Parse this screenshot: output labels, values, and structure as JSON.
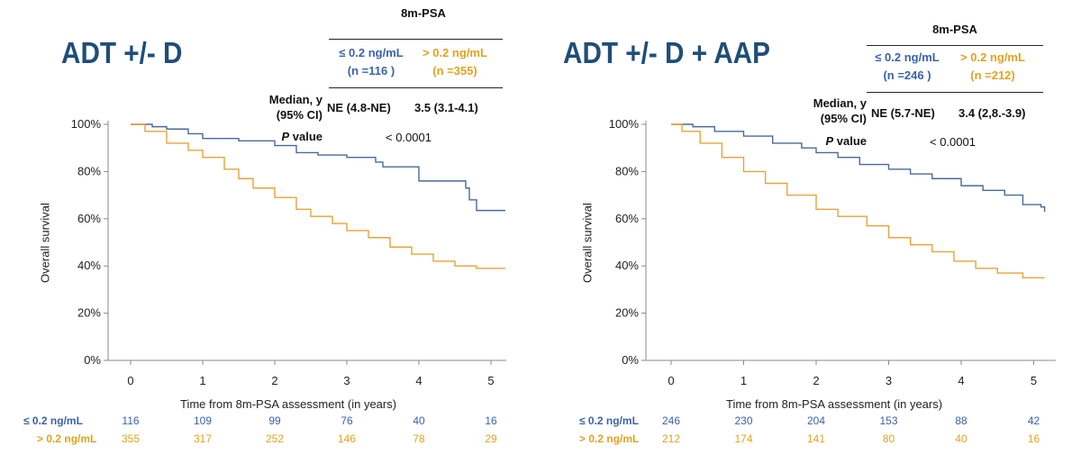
{
  "panels": [
    {
      "title": "ADT +/- D",
      "table": {
        "header": "8m-PSA",
        "group_low": {
          "label": "≤ 0.2 ng/mL",
          "n": "(n =116 )"
        },
        "group_high": {
          "label": "> 0.2 ng/mL",
          "n": "(n =355)"
        },
        "median_label_1": "Median, y",
        "median_label_2": "(95% CI)",
        "median_low": "NE (4.8-NE)",
        "median_high": "3.5 (3.1-4.1)",
        "p_label_italic": "P",
        "p_label_rest": " value",
        "p_value": "< 0.0001"
      },
      "risk_table": {
        "low_label": "≤ 0.2 ng/mL",
        "high_label": "> 0.2 ng/mL",
        "low": [
          "116",
          "109",
          "99",
          "76",
          "40",
          "16"
        ],
        "high": [
          "355",
          "317",
          "252",
          "146",
          "78",
          "29"
        ]
      }
    },
    {
      "title": "ADT +/- D + AAP",
      "table": {
        "header": "8m-PSA",
        "group_low": {
          "label": "≤ 0.2 ng/mL",
          "n": "(n =246 )"
        },
        "group_high": {
          "label": "> 0.2 ng/mL",
          "n": "(n =212)"
        },
        "median_label_1": "Median, y",
        "median_label_2": "(95% CI)",
        "median_low": "NE (5.7-NE)",
        "median_high": "3.4 (2,8.-3.9)",
        "p_label_italic": "P",
        "p_label_rest": " value",
        "p_value": "< 0.0001"
      },
      "risk_table": {
        "low_label": "≤ 0.2 ng/mL",
        "high_label": "> 0.2 ng/mL",
        "low": [
          "246",
          "230",
          "204",
          "153",
          "88",
          "42"
        ],
        "high": [
          "212",
          "174",
          "141",
          "80",
          "40",
          "16"
        ]
      }
    }
  ],
  "colors": {
    "low": "#4a6a9a",
    "high": "#e8a33a",
    "low_text": "#3a63a8",
    "high_text": "#e0a321",
    "title": "#1f4e79"
  },
  "chart_data": [
    {
      "type": "line",
      "xlabel": "Time from 8m-PSA assessment (in years)",
      "ylabel": "Overall survival",
      "xlim": [
        -0.3,
        5.2
      ],
      "ylim": [
        0,
        100
      ],
      "xticks": [
        "0",
        "1",
        "2",
        "3",
        "4",
        "5"
      ],
      "yticks": [
        "0%",
        "20%",
        "40%",
        "60%",
        "80%",
        "100%"
      ],
      "step": true,
      "series": [
        {
          "name": "≤ 0.2 ng/mL",
          "color": "#4a6a9a",
          "x": [
            0,
            0.3,
            0.5,
            0.8,
            1.0,
            1.5,
            2.0,
            2.3,
            2.6,
            3.0,
            3.4,
            3.5,
            4.0,
            4.65,
            4.7,
            4.8,
            5.2
          ],
          "y": [
            100,
            99,
            98,
            96,
            94,
            93,
            91,
            88,
            87,
            86,
            84,
            82,
            76,
            73,
            68,
            63.5,
            63.5
          ]
        },
        {
          "name": "> 0.2 ng/mL",
          "color": "#e8a33a",
          "x": [
            0,
            0.2,
            0.5,
            0.8,
            1.0,
            1.3,
            1.5,
            1.7,
            2.0,
            2.3,
            2.5,
            2.8,
            3.0,
            3.3,
            3.6,
            3.9,
            4.2,
            4.5,
            4.8,
            5.2
          ],
          "y": [
            100,
            97,
            92,
            89,
            86,
            81,
            77,
            73,
            69,
            64,
            61,
            58,
            55,
            52,
            48,
            45,
            42,
            40,
            39,
            39
          ]
        }
      ]
    },
    {
      "type": "line",
      "xlabel": "Time from 8m-PSA assessment (in years)",
      "ylabel": "Overall survival",
      "xlim": [
        -0.3,
        5.2
      ],
      "ylim": [
        0,
        100
      ],
      "xticks": [
        "0",
        "1",
        "2",
        "3",
        "4",
        "5"
      ],
      "yticks": [
        "0%",
        "20%",
        "40%",
        "60%",
        "80%",
        "100%"
      ],
      "step": true,
      "series": [
        {
          "name": "≤ 0.2 ng/mL",
          "color": "#4a6a9a",
          "x": [
            0,
            0.3,
            0.6,
            1.0,
            1.4,
            1.8,
            2.0,
            2.3,
            2.6,
            3.0,
            3.3,
            3.6,
            4.0,
            4.3,
            4.6,
            4.85,
            5.1,
            5.15
          ],
          "y": [
            100,
            99,
            97,
            95,
            92,
            90,
            88,
            86,
            83,
            81,
            79,
            77,
            74,
            72,
            70,
            66,
            65,
            63
          ]
        },
        {
          "name": "> 0.2 ng/mL",
          "color": "#e8a33a",
          "x": [
            0,
            0.15,
            0.4,
            0.7,
            1.0,
            1.3,
            1.6,
            2.0,
            2.3,
            2.7,
            3.0,
            3.3,
            3.6,
            3.9,
            4.2,
            4.5,
            4.85,
            5.15
          ],
          "y": [
            100,
            97,
            92,
            86,
            80,
            75,
            70,
            64,
            61,
            57,
            52,
            49,
            46,
            42,
            39,
            37,
            35,
            35
          ]
        }
      ]
    }
  ]
}
